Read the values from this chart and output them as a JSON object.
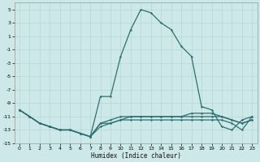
{
  "xlabel": "Humidex (Indice chaleur)",
  "bg_color": "#cde8e8",
  "grid_color": "#b8d4d4",
  "line_color": "#2d7070",
  "xlim": [
    -0.5,
    23.5
  ],
  "ylim": [
    -15,
    6
  ],
  "xticks": [
    0,
    1,
    2,
    3,
    4,
    5,
    6,
    7,
    8,
    9,
    10,
    11,
    12,
    13,
    14,
    15,
    16,
    17,
    18,
    19,
    20,
    21,
    22,
    23
  ],
  "yticks": [
    -15,
    -13,
    -11,
    -9,
    -7,
    -5,
    -3,
    -1,
    1,
    3,
    5
  ],
  "main_x": [
    0,
    1,
    2,
    3,
    4,
    5,
    6,
    7,
    8,
    9,
    10,
    11,
    12,
    13,
    14,
    15,
    16,
    17,
    18,
    19,
    20,
    21,
    22,
    23
  ],
  "main_y": [
    -10,
    -11,
    -12,
    -12.5,
    -13,
    -13,
    -13.5,
    -14,
    -8,
    -8,
    -2,
    2,
    5,
    4.5,
    3,
    2,
    -0.5,
    -2,
    -9.5,
    -10,
    -12.5,
    -13,
    -11.5,
    -11
  ],
  "line2_x": [
    0,
    1,
    2,
    3,
    4,
    5,
    6,
    7,
    8,
    9,
    10,
    11,
    12,
    13,
    14,
    15,
    16,
    17,
    18,
    19,
    20,
    21,
    22,
    23
  ],
  "line2_y": [
    -10,
    -11,
    -12,
    -12.5,
    -13,
    -13,
    -13.5,
    -14,
    -12.5,
    -12,
    -11.5,
    -11.5,
    -11.5,
    -11.5,
    -11.5,
    -11.5,
    -11.5,
    -11.5,
    -11.5,
    -11.5,
    -11.5,
    -12,
    -13,
    -11
  ],
  "line3_x": [
    0,
    1,
    2,
    3,
    4,
    5,
    6,
    7,
    8,
    9,
    10,
    11,
    12,
    13,
    14,
    15,
    16,
    17,
    18,
    19,
    20,
    21,
    22,
    23
  ],
  "line3_y": [
    -10,
    -11,
    -12,
    -12.5,
    -13,
    -13,
    -13.5,
    -14,
    -12,
    -12,
    -11.5,
    -11,
    -11,
    -11,
    -11,
    -11,
    -11,
    -11,
    -11,
    -11,
    -11,
    -11.5,
    -12,
    -11.5
  ],
  "line4_x": [
    0,
    1,
    2,
    3,
    4,
    5,
    6,
    7,
    8,
    9,
    10,
    11,
    12,
    13,
    14,
    15,
    16,
    17,
    18,
    19,
    20,
    21,
    22,
    23
  ],
  "line4_y": [
    -10,
    -11,
    -12,
    -12.5,
    -13,
    -13,
    -13.5,
    -14,
    -12,
    -11.5,
    -11,
    -11,
    -11,
    -11,
    -11,
    -11,
    -11,
    -10.5,
    -10.5,
    -10.5,
    -11,
    -11.5,
    -12,
    -11.5
  ]
}
